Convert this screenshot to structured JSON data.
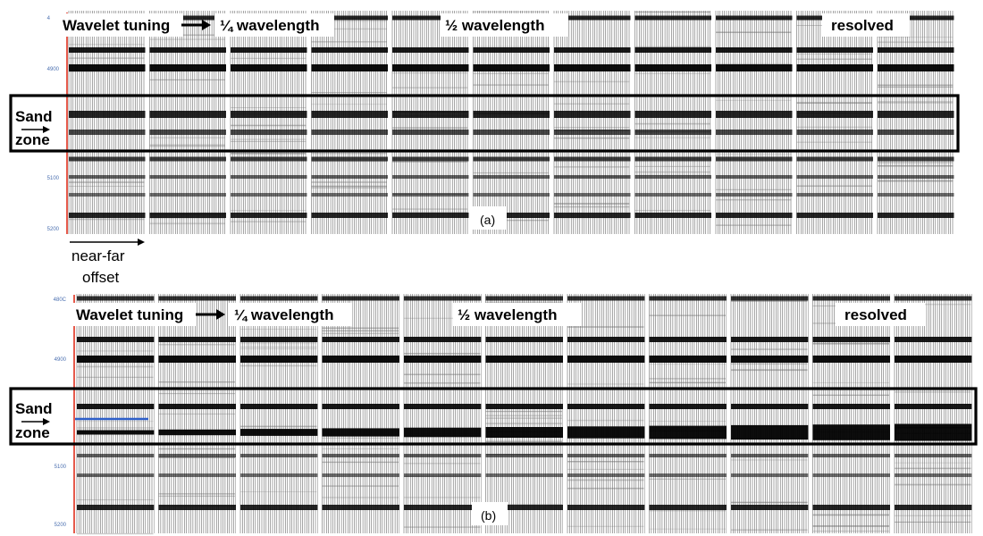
{
  "panels": [
    {
      "id_label": "(a)",
      "tick_labels": [
        "4",
        "4900",
        "5100",
        "5200"
      ],
      "header": {
        "wavelet_tuning": "Wavelet tuning",
        "quarter": "¼ wavelength",
        "half": "½ wavelength",
        "resolved": "resolved"
      },
      "zone": {
        "line1": "Sand",
        "line2": "zone"
      }
    },
    {
      "id_label": "(b)",
      "tick_labels": [
        "480C",
        "4900",
        "5100",
        "5200"
      ],
      "header": {
        "wavelet_tuning": "Wavelet tuning",
        "quarter": "¼ wavelength",
        "half": "½ wavelength",
        "resolved": "resolved"
      },
      "zone": {
        "line1": "Sand",
        "line2": "zone"
      }
    }
  ],
  "offset_label": {
    "line1": "near-far",
    "line2": "offset"
  },
  "colors": {
    "trace": "#000000",
    "reference_line": "#e0301e",
    "horizon_line": "#2e5fc9",
    "tick_label": "#4a6fb0"
  }
}
